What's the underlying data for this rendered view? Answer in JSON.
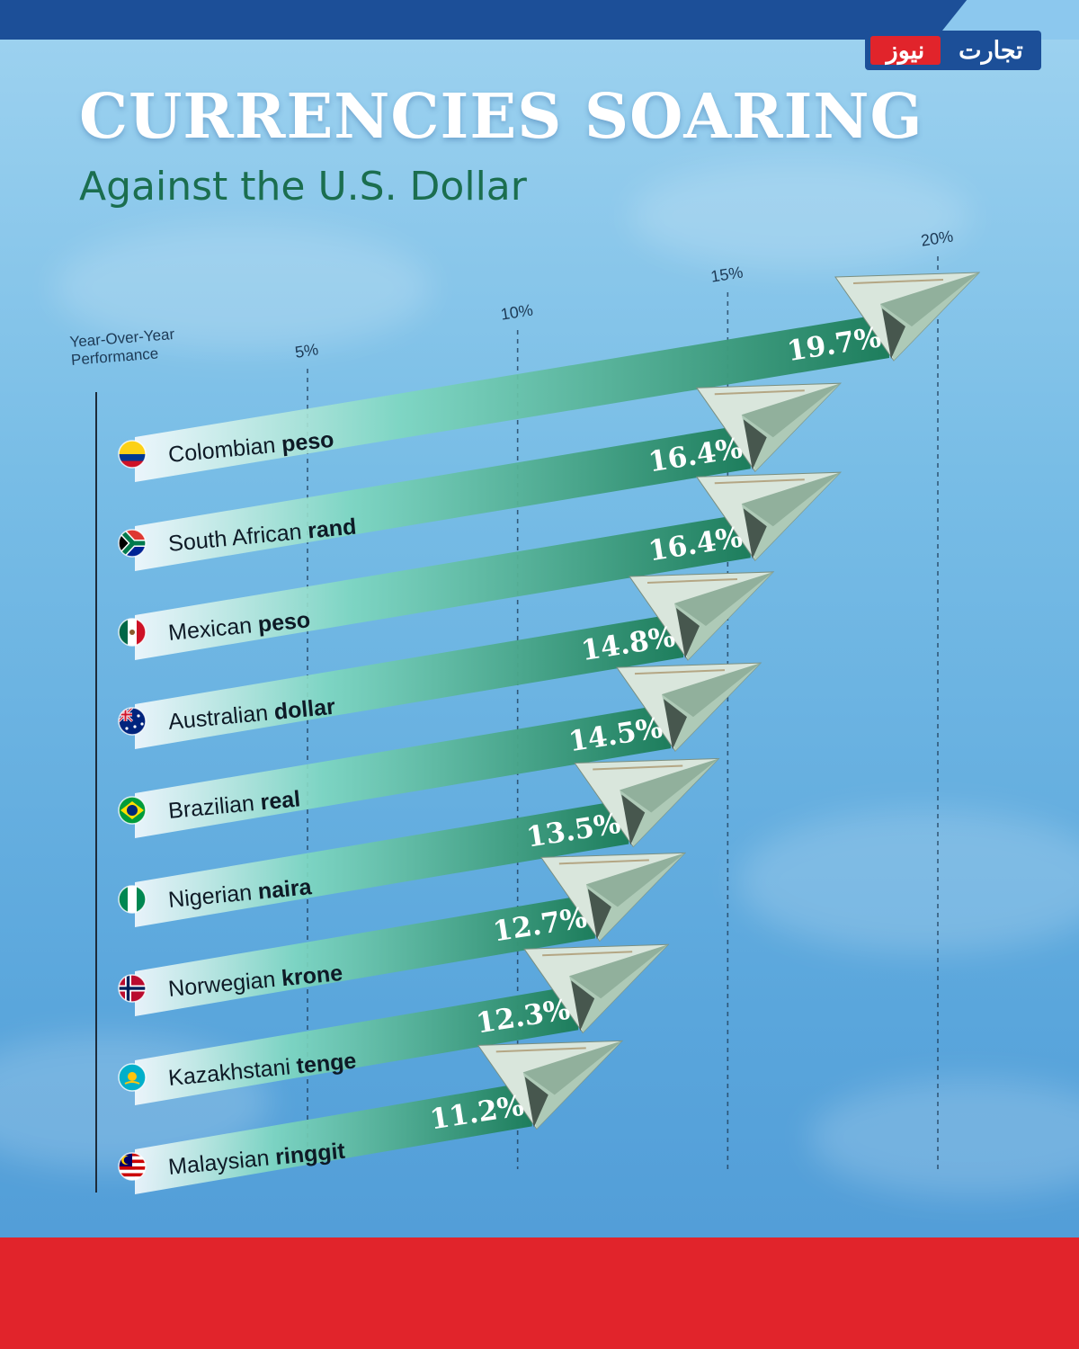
{
  "logo": {
    "part1": "نیوز",
    "part2": "تجارت"
  },
  "header": {
    "title": "CURRENCIES SOARING",
    "subtitle": "Against the U.S. Dollar"
  },
  "colors": {
    "bar_dark": "#1d7d5c",
    "bar_light": "#ffffff",
    "accent_red": "#e1242b",
    "brand_blue": "#1c4f98",
    "title_green": "#1b6e4f"
  },
  "chart_data": {
    "type": "bar",
    "orientation": "horizontal",
    "axis_title": "Year-Over-Year Performance",
    "ticks": [
      5,
      10,
      15,
      20
    ],
    "tick_labels": [
      "5%",
      "10%",
      "15%",
      "20%"
    ],
    "xlim": [
      0,
      20
    ],
    "grid": true,
    "unit": "%",
    "categories": [
      {
        "country": "Colombian",
        "currency": "peso",
        "flag": "colombia"
      },
      {
        "country": "South African",
        "currency": "rand",
        "flag": "south-africa"
      },
      {
        "country": "Mexican",
        "currency": "peso",
        "flag": "mexico"
      },
      {
        "country": "Australian",
        "currency": "dollar",
        "flag": "australia"
      },
      {
        "country": "Brazilian",
        "currency": "real",
        "flag": "brazil"
      },
      {
        "country": "Nigerian",
        "currency": "naira",
        "flag": "nigeria"
      },
      {
        "country": "Norwegian",
        "currency": "krone",
        "flag": "norway"
      },
      {
        "country": "Kazakhstani",
        "currency": "tenge",
        "flag": "kazakhstan"
      },
      {
        "country": "Malaysian",
        "currency": "ringgit",
        "flag": "malaysia"
      }
    ],
    "values": [
      19.7,
      16.4,
      16.4,
      14.8,
      14.5,
      13.5,
      12.7,
      12.3,
      11.2
    ],
    "value_labels": [
      "19.7%",
      "16.4%",
      "16.4%",
      "14.8%",
      "14.5%",
      "13.5%",
      "12.7%",
      "12.3%",
      "11.2%"
    ]
  }
}
